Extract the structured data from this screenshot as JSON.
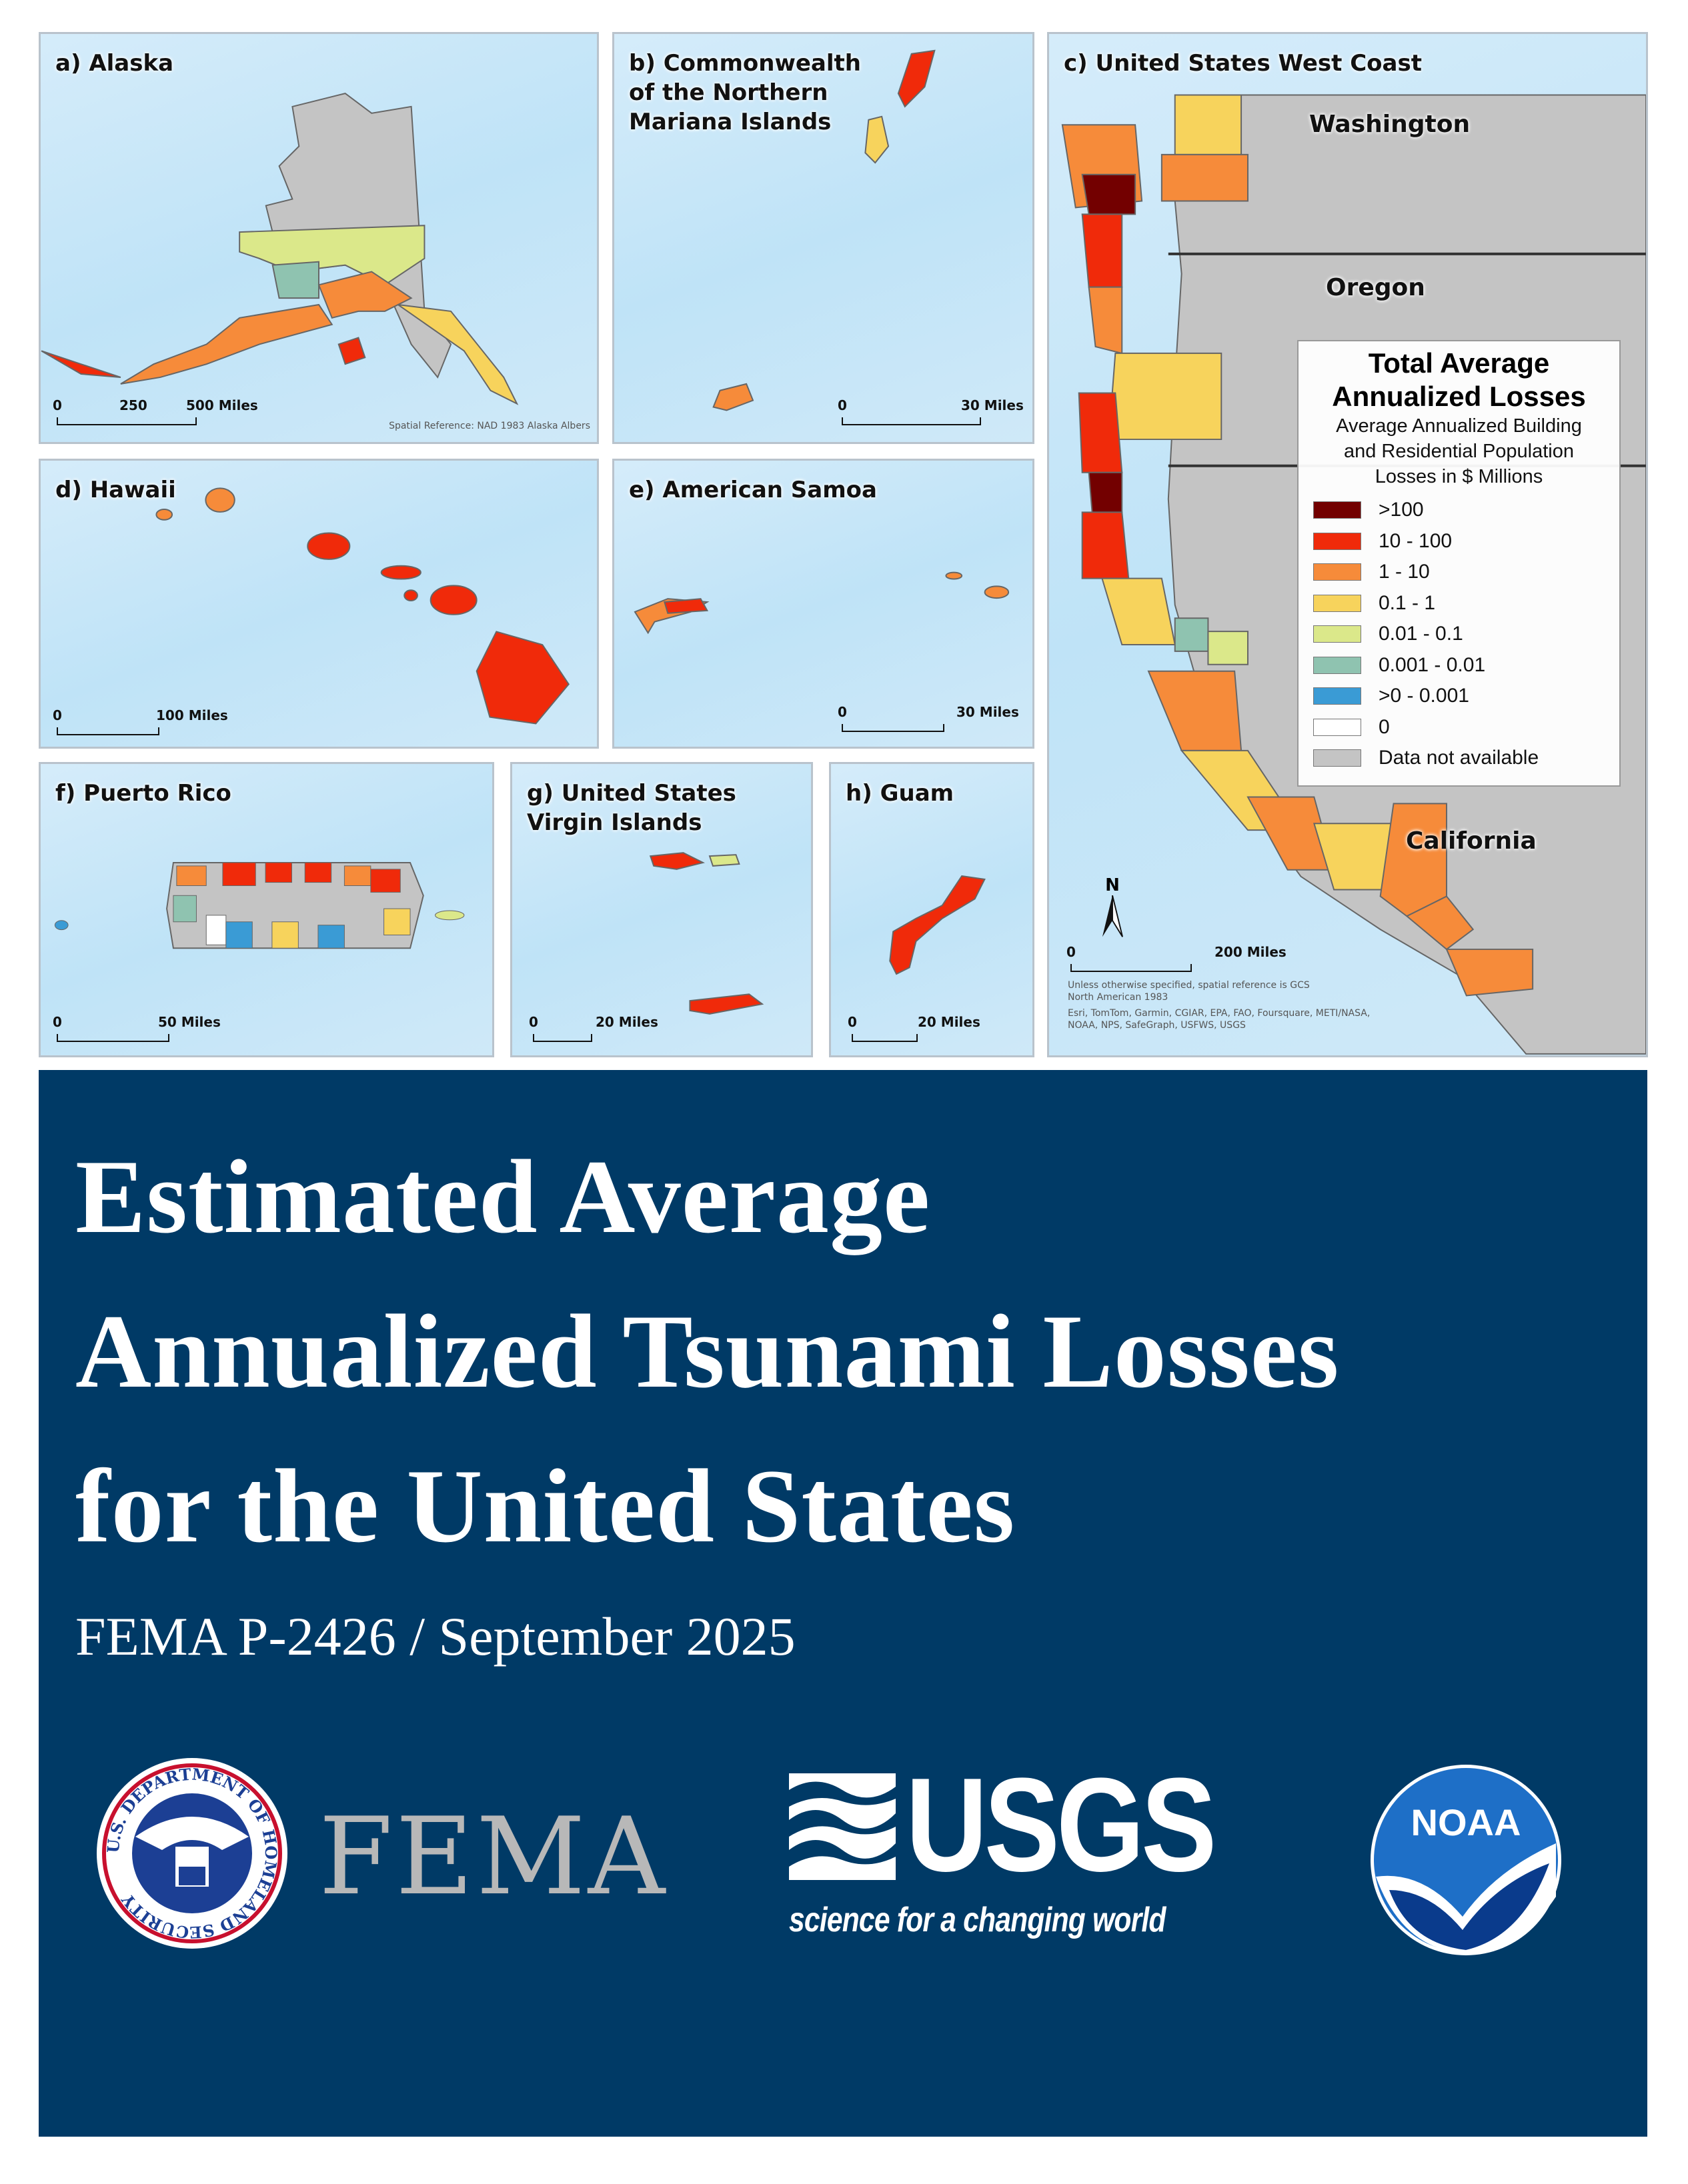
{
  "panels": {
    "a": {
      "label": "a) Alaska",
      "scale": [
        "0",
        "250",
        "500 Miles"
      ],
      "note": "Spatial Reference: NAD 1983 Alaska Albers"
    },
    "b": {
      "label_lines": [
        "b) Commonwealth",
        "of the Northern",
        "Mariana Islands"
      ],
      "scale": [
        "0",
        "30 Miles"
      ]
    },
    "c": {
      "label": "c) United States West Coast",
      "states": [
        "Washington",
        "Oregon",
        "California"
      ],
      "north": "N",
      "scale": [
        "0",
        "200 Miles"
      ],
      "note1": "Unless otherwise specified, spatial reference is GCS",
      "note2": "North American 1983",
      "credits1": "Esri, TomTom, Garmin, CGIAR, EPA, FAO, Foursquare, METI/NASA,",
      "credits2": "NOAA, NPS, SafeGraph, USFWS, USGS"
    },
    "d": {
      "label": "d) Hawaii",
      "scale": [
        "0",
        "100 Miles"
      ]
    },
    "e": {
      "label": "e) American Samoa",
      "scale": [
        "0",
        "30 Miles"
      ]
    },
    "f": {
      "label": "f) Puerto Rico",
      "scale": [
        "0",
        "50 Miles"
      ]
    },
    "g": {
      "label_lines": [
        "g) United States",
        "Virgin Islands"
      ],
      "scale": [
        "0",
        "20 Miles"
      ]
    },
    "h": {
      "label": "h) Guam",
      "scale": [
        "0",
        "20 Miles"
      ]
    }
  },
  "legend": {
    "title_lines": [
      "Total Average",
      "Annualized Losses"
    ],
    "subtitle_lines": [
      "Average Annualized Building",
      "and Residential Population",
      "Losses in $ Millions"
    ],
    "items": [
      {
        "label": ">100",
        "color": "#730000"
      },
      {
        "label": "10 - 100",
        "color": "#f02a0a"
      },
      {
        "label": "1 - 10",
        "color": "#f68b3a"
      },
      {
        "label": "0.1 - 1",
        "color": "#f7d35c"
      },
      {
        "label": "0.01 - 0.1",
        "color": "#dbe88a"
      },
      {
        "label": "0.001 - 0.01",
        "color": "#8fc3b0"
      },
      {
        "label": ">0 - 0.001",
        "color": "#3a9bd5"
      },
      {
        "label": "0",
        "color": "#ffffff"
      },
      {
        "label": "Data not available",
        "color": "#c4c4c4"
      }
    ]
  },
  "cover": {
    "title_lines": [
      "Estimated Average",
      "Annualized Tsunami Losses",
      "for the United States"
    ],
    "subtitle": "FEMA P-2426 / September 2025",
    "background": "#003a66"
  },
  "logos": {
    "dhs_seal": "U.S. DEPARTMENT OF HOMELAND SECURITY",
    "fema": "FEMA",
    "usgs": "USGS",
    "usgs_tagline": "science for a changing world",
    "noaa": "NOAA"
  }
}
